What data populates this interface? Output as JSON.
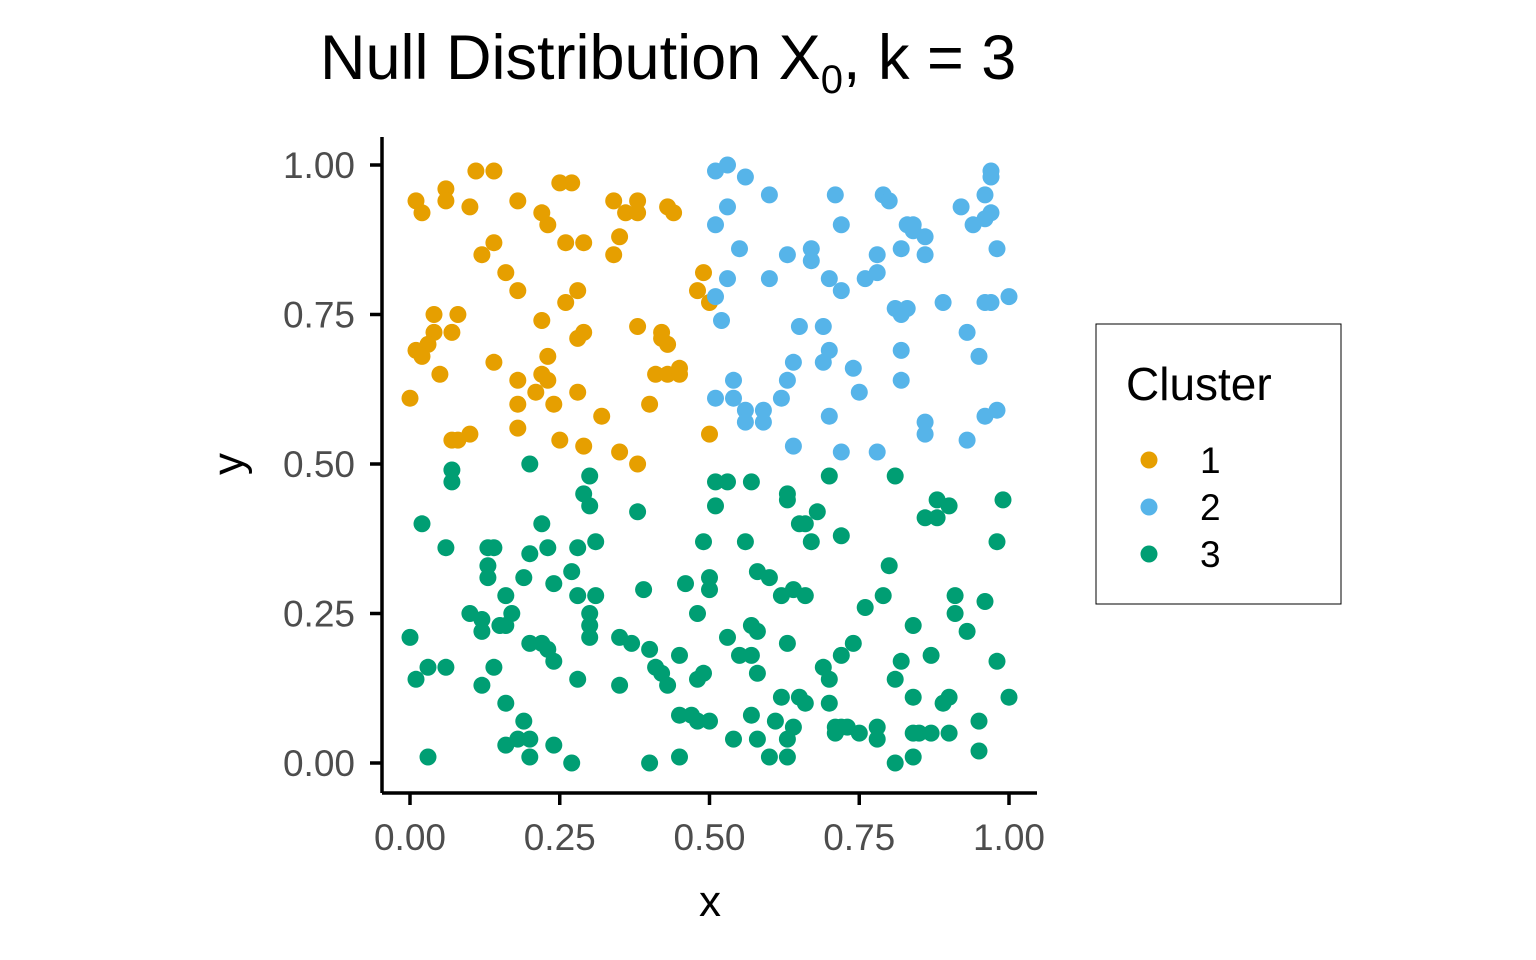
{
  "chart_data": {
    "type": "scatter",
    "title": "Null Distribution X",
    "title_subscript": "0",
    "title_suffix": ", k = 3",
    "xlabel": "x",
    "ylabel": "y",
    "xlim": [
      0,
      1
    ],
    "ylim": [
      0,
      1
    ],
    "x_ticks": [
      "0.00",
      "0.25",
      "0.50",
      "0.75",
      "1.00"
    ],
    "y_ticks": [
      "0.00",
      "0.25",
      "0.50",
      "0.75",
      "1.00"
    ],
    "x_tick_values": [
      0,
      0.25,
      0.5,
      0.75,
      1
    ],
    "y_tick_values": [
      0,
      0.25,
      0.5,
      0.75,
      1
    ],
    "grid": false,
    "legend": {
      "title": "Cluster",
      "position": "right"
    },
    "series": [
      {
        "name": "1",
        "color": "#E69F00",
        "points": [
          [
            0.11,
            0.99
          ],
          [
            0.14,
            0.99
          ],
          [
            0.25,
            0.97
          ],
          [
            0.27,
            0.97
          ],
          [
            0.06,
            0.96
          ],
          [
            0.01,
            0.94
          ],
          [
            0.06,
            0.94
          ],
          [
            0.1,
            0.93
          ],
          [
            0.02,
            0.92
          ],
          [
            0.18,
            0.94
          ],
          [
            0.34,
            0.94
          ],
          [
            0.38,
            0.94
          ],
          [
            0.43,
            0.93
          ],
          [
            0.44,
            0.92
          ],
          [
            0.36,
            0.92
          ],
          [
            0.38,
            0.92
          ],
          [
            0.22,
            0.92
          ],
          [
            0.23,
            0.9
          ],
          [
            0.35,
            0.88
          ],
          [
            0.14,
            0.87
          ],
          [
            0.26,
            0.87
          ],
          [
            0.29,
            0.87
          ],
          [
            0.12,
            0.85
          ],
          [
            0.34,
            0.85
          ],
          [
            0.16,
            0.82
          ],
          [
            0.49,
            0.82
          ],
          [
            0.18,
            0.79
          ],
          [
            0.28,
            0.79
          ],
          [
            0.48,
            0.79
          ],
          [
            0.5,
            0.77
          ],
          [
            0.26,
            0.77
          ],
          [
            0.04,
            0.75
          ],
          [
            0.08,
            0.75
          ],
          [
            0.22,
            0.74
          ],
          [
            0.04,
            0.72
          ],
          [
            0.07,
            0.72
          ],
          [
            0.29,
            0.72
          ],
          [
            0.28,
            0.71
          ],
          [
            0.38,
            0.73
          ],
          [
            0.42,
            0.72
          ],
          [
            0.42,
            0.71
          ],
          [
            0.43,
            0.7
          ],
          [
            0.01,
            0.69
          ],
          [
            0.03,
            0.7
          ],
          [
            0.02,
            0.68
          ],
          [
            0.23,
            0.68
          ],
          [
            0.14,
            0.67
          ],
          [
            0.05,
            0.65
          ],
          [
            0.22,
            0.65
          ],
          [
            0.23,
            0.64
          ],
          [
            0.18,
            0.64
          ],
          [
            0.41,
            0.65
          ],
          [
            0.43,
            0.65
          ],
          [
            0.45,
            0.66
          ],
          [
            0.45,
            0.65
          ],
          [
            0.0,
            0.61
          ],
          [
            0.21,
            0.62
          ],
          [
            0.28,
            0.62
          ],
          [
            0.18,
            0.6
          ],
          [
            0.24,
            0.6
          ],
          [
            0.4,
            0.6
          ],
          [
            0.32,
            0.58
          ],
          [
            0.18,
            0.56
          ],
          [
            0.07,
            0.54
          ],
          [
            0.08,
            0.54
          ],
          [
            0.1,
            0.55
          ],
          [
            0.25,
            0.54
          ],
          [
            0.29,
            0.53
          ],
          [
            0.35,
            0.52
          ],
          [
            0.5,
            0.55
          ],
          [
            0.38,
            0.5
          ]
        ]
      },
      {
        "name": "2",
        "color": "#56B4E9",
        "points": [
          [
            0.51,
            0.99
          ],
          [
            0.53,
            1.0
          ],
          [
            0.56,
            0.98
          ],
          [
            0.97,
            0.99
          ],
          [
            0.97,
            0.98
          ],
          [
            0.6,
            0.95
          ],
          [
            0.71,
            0.95
          ],
          [
            0.79,
            0.95
          ],
          [
            0.8,
            0.94
          ],
          [
            0.96,
            0.95
          ],
          [
            0.92,
            0.93
          ],
          [
            0.53,
            0.93
          ],
          [
            0.97,
            0.92
          ],
          [
            0.96,
            0.91
          ],
          [
            0.72,
            0.9
          ],
          [
            0.51,
            0.9
          ],
          [
            0.83,
            0.9
          ],
          [
            0.84,
            0.9
          ],
          [
            0.86,
            0.88
          ],
          [
            0.94,
            0.9
          ],
          [
            0.84,
            0.89
          ],
          [
            0.55,
            0.86
          ],
          [
            0.67,
            0.86
          ],
          [
            0.82,
            0.86
          ],
          [
            0.98,
            0.86
          ],
          [
            0.63,
            0.85
          ],
          [
            0.67,
            0.84
          ],
          [
            0.86,
            0.85
          ],
          [
            0.78,
            0.85
          ],
          [
            0.53,
            0.81
          ],
          [
            0.6,
            0.81
          ],
          [
            0.7,
            0.81
          ],
          [
            0.76,
            0.81
          ],
          [
            0.78,
            0.82
          ],
          [
            0.51,
            0.78
          ],
          [
            0.72,
            0.79
          ],
          [
            0.96,
            0.77
          ],
          [
            0.97,
            0.77
          ],
          [
            1.0,
            0.78
          ],
          [
            0.89,
            0.77
          ],
          [
            0.81,
            0.76
          ],
          [
            0.82,
            0.75
          ],
          [
            0.83,
            0.76
          ],
          [
            0.52,
            0.74
          ],
          [
            0.65,
            0.73
          ],
          [
            0.69,
            0.73
          ],
          [
            0.93,
            0.72
          ],
          [
            0.7,
            0.69
          ],
          [
            0.82,
            0.69
          ],
          [
            0.95,
            0.68
          ],
          [
            0.64,
            0.67
          ],
          [
            0.69,
            0.67
          ],
          [
            0.63,
            0.64
          ],
          [
            0.54,
            0.64
          ],
          [
            0.74,
            0.66
          ],
          [
            0.82,
            0.64
          ],
          [
            0.75,
            0.62
          ],
          [
            0.51,
            0.61
          ],
          [
            0.54,
            0.61
          ],
          [
            0.56,
            0.59
          ],
          [
            0.59,
            0.59
          ],
          [
            0.62,
            0.61
          ],
          [
            0.56,
            0.57
          ],
          [
            0.59,
            0.57
          ],
          [
            0.7,
            0.58
          ],
          [
            0.86,
            0.57
          ],
          [
            0.96,
            0.58
          ],
          [
            0.98,
            0.59
          ],
          [
            0.86,
            0.55
          ],
          [
            0.64,
            0.53
          ],
          [
            0.93,
            0.54
          ],
          [
            0.72,
            0.52
          ],
          [
            0.78,
            0.52
          ]
        ]
      },
      {
        "name": "3",
        "color": "#009E73",
        "points": [
          [
            0.07,
            0.49
          ],
          [
            0.07,
            0.47
          ],
          [
            0.2,
            0.5
          ],
          [
            0.3,
            0.48
          ],
          [
            0.51,
            0.47
          ],
          [
            0.53,
            0.47
          ],
          [
            0.57,
            0.47
          ],
          [
            0.7,
            0.48
          ],
          [
            0.81,
            0.48
          ],
          [
            0.29,
            0.45
          ],
          [
            0.3,
            0.43
          ],
          [
            0.51,
            0.43
          ],
          [
            0.63,
            0.45
          ],
          [
            0.63,
            0.44
          ],
          [
            0.88,
            0.44
          ],
          [
            0.9,
            0.43
          ],
          [
            0.99,
            0.44
          ],
          [
            0.38,
            0.42
          ],
          [
            0.68,
            0.42
          ],
          [
            0.02,
            0.4
          ],
          [
            0.22,
            0.4
          ],
          [
            0.65,
            0.4
          ],
          [
            0.66,
            0.4
          ],
          [
            0.86,
            0.41
          ],
          [
            0.88,
            0.41
          ],
          [
            0.13,
            0.36
          ],
          [
            0.14,
            0.36
          ],
          [
            0.23,
            0.36
          ],
          [
            0.28,
            0.36
          ],
          [
            0.31,
            0.37
          ],
          [
            0.49,
            0.37
          ],
          [
            0.56,
            0.37
          ],
          [
            0.67,
            0.37
          ],
          [
            0.72,
            0.38
          ],
          [
            0.98,
            0.37
          ],
          [
            0.06,
            0.36
          ],
          [
            0.2,
            0.35
          ],
          [
            0.13,
            0.33
          ],
          [
            0.13,
            0.31
          ],
          [
            0.19,
            0.31
          ],
          [
            0.27,
            0.32
          ],
          [
            0.5,
            0.31
          ],
          [
            0.58,
            0.32
          ],
          [
            0.6,
            0.31
          ],
          [
            0.8,
            0.33
          ],
          [
            0.24,
            0.3
          ],
          [
            0.39,
            0.29
          ],
          [
            0.46,
            0.3
          ],
          [
            0.5,
            0.29
          ],
          [
            0.31,
            0.28
          ],
          [
            0.28,
            0.28
          ],
          [
            0.16,
            0.28
          ],
          [
            0.62,
            0.28
          ],
          [
            0.64,
            0.29
          ],
          [
            0.66,
            0.28
          ],
          [
            0.79,
            0.28
          ],
          [
            0.91,
            0.28
          ],
          [
            0.1,
            0.25
          ],
          [
            0.12,
            0.24
          ],
          [
            0.17,
            0.25
          ],
          [
            0.3,
            0.25
          ],
          [
            0.3,
            0.23
          ],
          [
            0.48,
            0.25
          ],
          [
            0.76,
            0.26
          ],
          [
            0.91,
            0.25
          ],
          [
            0.96,
            0.27
          ],
          [
            0.16,
            0.23
          ],
          [
            0.12,
            0.22
          ],
          [
            0.15,
            0.23
          ],
          [
            0.57,
            0.23
          ],
          [
            0.58,
            0.22
          ],
          [
            0.84,
            0.23
          ],
          [
            0.93,
            0.22
          ],
          [
            0.0,
            0.21
          ],
          [
            0.3,
            0.21
          ],
          [
            0.35,
            0.21
          ],
          [
            0.37,
            0.2
          ],
          [
            0.53,
            0.21
          ],
          [
            0.2,
            0.2
          ],
          [
            0.22,
            0.2
          ],
          [
            0.23,
            0.19
          ],
          [
            0.4,
            0.19
          ],
          [
            0.63,
            0.2
          ],
          [
            0.74,
            0.2
          ],
          [
            0.45,
            0.18
          ],
          [
            0.55,
            0.18
          ],
          [
            0.57,
            0.18
          ],
          [
            0.72,
            0.18
          ],
          [
            0.87,
            0.18
          ],
          [
            0.24,
            0.17
          ],
          [
            0.14,
            0.16
          ],
          [
            0.06,
            0.16
          ],
          [
            0.03,
            0.16
          ],
          [
            0.41,
            0.16
          ],
          [
            0.42,
            0.15
          ],
          [
            0.49,
            0.15
          ],
          [
            0.58,
            0.15
          ],
          [
            0.69,
            0.16
          ],
          [
            0.82,
            0.17
          ],
          [
            0.98,
            0.17
          ],
          [
            0.01,
            0.14
          ],
          [
            0.28,
            0.14
          ],
          [
            0.35,
            0.13
          ],
          [
            0.43,
            0.13
          ],
          [
            0.48,
            0.14
          ],
          [
            0.7,
            0.14
          ],
          [
            0.81,
            0.14
          ],
          [
            0.12,
            0.13
          ],
          [
            0.62,
            0.11
          ],
          [
            0.65,
            0.11
          ],
          [
            0.66,
            0.1
          ],
          [
            0.7,
            0.1
          ],
          [
            0.84,
            0.11
          ],
          [
            0.89,
            0.1
          ],
          [
            0.9,
            0.11
          ],
          [
            1.0,
            0.11
          ],
          [
            0.16,
            0.1
          ],
          [
            0.45,
            0.08
          ],
          [
            0.47,
            0.08
          ],
          [
            0.48,
            0.07
          ],
          [
            0.5,
            0.07
          ],
          [
            0.57,
            0.08
          ],
          [
            0.61,
            0.07
          ],
          [
            0.64,
            0.06
          ],
          [
            0.71,
            0.06
          ],
          [
            0.72,
            0.06
          ],
          [
            0.73,
            0.06
          ],
          [
            0.75,
            0.05
          ],
          [
            0.78,
            0.06
          ],
          [
            0.85,
            0.05
          ],
          [
            0.87,
            0.05
          ],
          [
            0.9,
            0.05
          ],
          [
            0.95,
            0.07
          ],
          [
            0.19,
            0.07
          ],
          [
            0.18,
            0.04
          ],
          [
            0.16,
            0.03
          ],
          [
            0.2,
            0.04
          ],
          [
            0.24,
            0.03
          ],
          [
            0.54,
            0.04
          ],
          [
            0.58,
            0.04
          ],
          [
            0.63,
            0.04
          ],
          [
            0.71,
            0.05
          ],
          [
            0.78,
            0.04
          ],
          [
            0.84,
            0.05
          ],
          [
            0.6,
            0.01
          ],
          [
            0.63,
            0.01
          ],
          [
            0.2,
            0.01
          ],
          [
            0.03,
            0.01
          ],
          [
            0.27,
            0.0
          ],
          [
            0.4,
            0.0
          ],
          [
            0.45,
            0.01
          ],
          [
            0.81,
            0.0
          ],
          [
            0.84,
            0.01
          ],
          [
            0.95,
            0.02
          ]
        ]
      }
    ]
  }
}
